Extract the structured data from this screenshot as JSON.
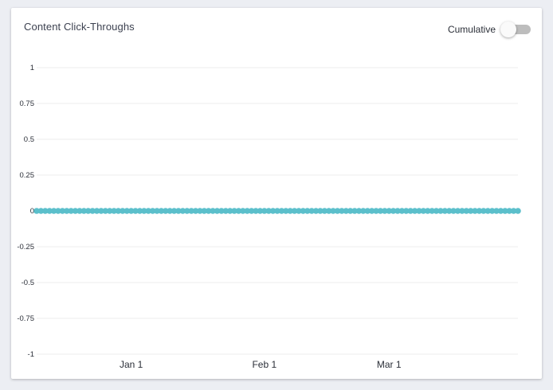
{
  "card": {
    "title": "Content Click-Throughs"
  },
  "toggle": {
    "label": "Cumulative",
    "checked": false
  },
  "chart_data": {
    "type": "line",
    "title": "Content Click-Throughs",
    "xlabel": "",
    "ylabel": "",
    "x_range": [
      "2023-12-10",
      "2024-03-31"
    ],
    "ylim": [
      -1,
      1
    ],
    "y_ticks": [
      1,
      0.75,
      0.5,
      0.25,
      0,
      -0.25,
      -0.5,
      -0.75,
      -1
    ],
    "y_tick_labels": [
      "1",
      "0.75",
      "0.5",
      "0.25",
      "0",
      "-0.25",
      "-0.5",
      "-0.75",
      "-1"
    ],
    "x_ticks": [
      "2024-01-01",
      "2024-02-01",
      "2024-03-01"
    ],
    "x_tick_labels": [
      "Jan 1",
      "Feb 1",
      "Mar 1"
    ],
    "grid": true,
    "series": [
      {
        "color": "#5bbfcb",
        "x_start": "2023-12-10",
        "x_end": "2024-03-31",
        "point_count": 113,
        "value": 0
      }
    ]
  }
}
